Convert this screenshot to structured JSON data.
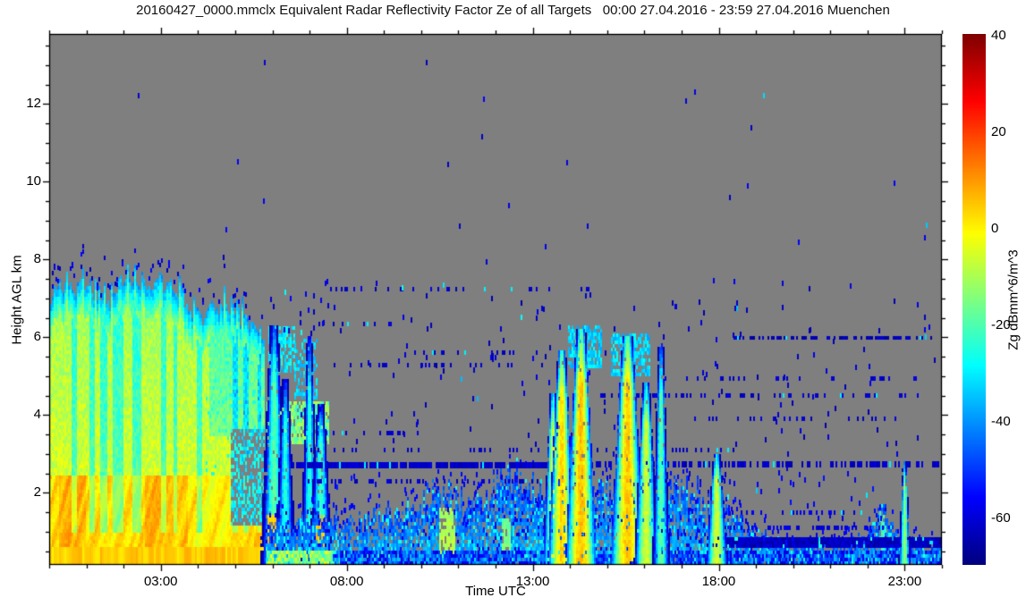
{
  "header": {
    "title": "20160427_0000.mmclx Equivalent Radar Reflectivity Factor Ze of all Targets   00:00 27.04.2016 - 23:59 27.04.2016 Muenchen"
  },
  "colors": {
    "page_bg": "#ffffff",
    "plot_bg": "#7f7f7f",
    "axis": "#000000",
    "text": "#111111"
  },
  "chart_data": {
    "type": "heatmap",
    "title": "20160427_0000.mmclx Equivalent Radar Reflectivity Factor Ze of all Targets   00:00 27.04.2016 - 23:59 27.04.2016 Muenchen",
    "xlabel": "Time UTC",
    "ylabel": "Height AGL km",
    "x_range_hours": [
      0,
      24
    ],
    "y_range_km": [
      0.15,
      13.8
    ],
    "x_major_ticks": [
      {
        "h": 3,
        "label": "03:00"
      },
      {
        "h": 8,
        "label": "08:00"
      },
      {
        "h": 13,
        "label": "13:00"
      },
      {
        "h": 18,
        "label": "18:00"
      },
      {
        "h": 23,
        "label": "23:00"
      }
    ],
    "x_minor_step_hours": 1,
    "y_major_ticks": [
      {
        "km": 2,
        "label": "2"
      },
      {
        "km": 4,
        "label": "4"
      },
      {
        "km": 6,
        "label": "6"
      },
      {
        "km": 8,
        "label": "8"
      },
      {
        "km": 10,
        "label": "10"
      },
      {
        "km": 12,
        "label": "12"
      }
    ],
    "y_minor_step_km": 0.5,
    "grid": false,
    "no_signal_color": "#7f7f7f",
    "colorbar": {
      "label": "Zg dBmm^6/m^3",
      "vmin": -70,
      "vmax": 40,
      "colormap": "jet",
      "ticks": [
        {
          "v": 40,
          "label": "40"
        },
        {
          "v": 20,
          "label": "20"
        },
        {
          "v": 0,
          "label": "0"
        },
        {
          "v": -20,
          "label": "-20"
        },
        {
          "v": -40,
          "label": "-40"
        },
        {
          "v": -60,
          "label": "-60"
        }
      ]
    },
    "features": [
      {
        "kind": "storm",
        "t0": 0.03,
        "t1": 5.78,
        "low_top_km": 2.4,
        "top_profile": [
          [
            0,
            7.1
          ],
          [
            0.8,
            7.3
          ],
          [
            1.6,
            7.0
          ],
          [
            2.2,
            7.45
          ],
          [
            3.1,
            7.3
          ],
          [
            3.55,
            7.1
          ],
          [
            3.8,
            6.6
          ],
          [
            4.3,
            6.5
          ],
          [
            4.75,
            6.8
          ],
          [
            5.05,
            6.3
          ],
          [
            5.45,
            6.35
          ],
          [
            5.78,
            6.1
          ]
        ]
      },
      {
        "kind": "blob",
        "t0": 5.85,
        "t1": 7.5,
        "h0": 3.25,
        "h1": 4.35,
        "v": -16,
        "jitter": 9,
        "density": 0.85
      },
      {
        "kind": "blob",
        "t0": 5.9,
        "t1": 6.6,
        "h0": 5.1,
        "h1": 6.25,
        "v": -30,
        "jitter": 6,
        "density": 0.6
      },
      {
        "kind": "blob",
        "t0": 6.6,
        "t1": 7.2,
        "h0": 4.4,
        "h1": 5.9,
        "v": -33,
        "jitter": 5,
        "density": 0.45
      },
      {
        "kind": "plume",
        "tc": 6.05,
        "hw": 0.16,
        "top": 6.3,
        "vcore": -20,
        "gs": true,
        "gv": 4
      },
      {
        "kind": "plume",
        "tc": 6.35,
        "hw": 0.12,
        "top": 4.9,
        "vcore": -26
      },
      {
        "kind": "plume",
        "tc": 7.0,
        "hw": 0.1,
        "top": 5.95,
        "vcore": -24
      },
      {
        "kind": "plume",
        "tc": 7.3,
        "hw": 0.14,
        "top": 4.2,
        "vcore": -22,
        "gs": true,
        "gv": 5
      },
      {
        "kind": "bl",
        "t0": 5.82,
        "t1": 24,
        "top_profile": [
          [
            5.82,
            1.3
          ],
          [
            6.5,
            1.0
          ],
          [
            7.2,
            1.35
          ],
          [
            8,
            1.1
          ],
          [
            9,
            1.35
          ],
          [
            10,
            1.7
          ],
          [
            10.7,
            2.1
          ],
          [
            11.3,
            1.7
          ],
          [
            12,
            2.0
          ],
          [
            12.5,
            2.45
          ],
          [
            13.1,
            2.2
          ],
          [
            13.6,
            1.9
          ],
          [
            14.1,
            1.6
          ],
          [
            14.6,
            2.0
          ],
          [
            15.1,
            1.8
          ],
          [
            15.8,
            2.0
          ],
          [
            16.6,
            2.1
          ],
          [
            17.3,
            1.9
          ],
          [
            18.1,
            1.6
          ],
          [
            18.6,
            1.1
          ],
          [
            19.3,
            0.8
          ],
          [
            20.2,
            0.6
          ],
          [
            21.2,
            0.55
          ],
          [
            22.0,
            0.8
          ],
          [
            22.45,
            1.6
          ],
          [
            22.8,
            0.9
          ],
          [
            23.2,
            0.65
          ],
          [
            24,
            0.6
          ]
        ],
        "cores": [
          {
            "tc": 10.72,
            "hw": 0.22,
            "htop": 1.6,
            "v": -6
          },
          {
            "tc": 12.3,
            "hw": 0.12,
            "htop": 1.3,
            "v": -12
          },
          {
            "tc": 22.4,
            "hw": 0.08,
            "htop": 1.4,
            "v": -18
          }
        ]
      },
      {
        "kind": "band",
        "t0": 5.85,
        "t1": 24,
        "h0": 0.15,
        "h1": 0.46,
        "density": 0.95,
        "v": -48,
        "jitter": 14,
        "cyan_prob": 0.06,
        "warm_until": 7.6
      },
      {
        "kind": "band",
        "t0": 17.85,
        "t1": 24,
        "h0": 0.58,
        "h1": 0.85,
        "density": 0.97,
        "v": -63,
        "jitter": 4,
        "cyan_prob": 0.03
      },
      {
        "kind": "dotrow",
        "h": 2.72,
        "t0": 6.55,
        "t1": 14.6,
        "density": 0.93,
        "thick": 0.17,
        "v": -62
      },
      {
        "kind": "dotrow",
        "h": 2.72,
        "t0": 14.6,
        "t1": 23.9,
        "density": 0.5,
        "thick": 0.15,
        "v": -62
      },
      {
        "kind": "dotrow",
        "h": 2.3,
        "t0": 6.8,
        "t1": 17.5,
        "density": 0.28,
        "thick": 0.12,
        "v": -62
      },
      {
        "kind": "dotrow",
        "h": 3.1,
        "t0": 6.6,
        "t1": 18.5,
        "density": 0.2,
        "thick": 0.12,
        "v": -62
      },
      {
        "kind": "dotrow",
        "h": 3.55,
        "t0": 6.7,
        "t1": 10.0,
        "density": 0.25,
        "thick": 0.12,
        "v": -62
      },
      {
        "kind": "dotrow",
        "h": 3.9,
        "t0": 17.3,
        "t1": 22.8,
        "density": 0.2,
        "thick": 0.12,
        "v": -62
      },
      {
        "kind": "dotrow",
        "h": 4.5,
        "t0": 13.7,
        "t1": 23.9,
        "density": 0.3,
        "thick": 0.12,
        "v": -62
      },
      {
        "kind": "dotrow",
        "h": 4.95,
        "t0": 16.3,
        "t1": 23.6,
        "density": 0.18,
        "thick": 0.12,
        "v": -62
      },
      {
        "kind": "dotrow",
        "h": 5.3,
        "t0": 7.4,
        "t1": 13.4,
        "density": 0.24,
        "thick": 0.12,
        "v": -62
      },
      {
        "kind": "dotrow",
        "h": 5.6,
        "t0": 9.8,
        "t1": 13.2,
        "density": 0.18,
        "thick": 0.12,
        "v": -62
      },
      {
        "kind": "dotrow",
        "h": 6.0,
        "t0": 18.4,
        "t1": 24,
        "density": 0.5,
        "thick": 0.1,
        "v": -64
      },
      {
        "kind": "dotrow",
        "h": 6.35,
        "t0": 7.2,
        "t1": 9.4,
        "density": 0.25,
        "thick": 0.12,
        "v": -62
      },
      {
        "kind": "dotrow",
        "h": 7.25,
        "t0": 7.3,
        "t1": 14.6,
        "density": 0.16,
        "thick": 0.12,
        "v": -62
      },
      {
        "kind": "dotrow",
        "h": 1.1,
        "t0": 18.3,
        "t1": 22.4,
        "density": 0.3,
        "thick": 0.12,
        "v": -60
      },
      {
        "kind": "dotrow",
        "h": 1.5,
        "t0": 18.3,
        "t1": 22.0,
        "density": 0.22,
        "thick": 0.12,
        "v": -60
      },
      {
        "kind": "scatter",
        "t0": 6.5,
        "t1": 23.9,
        "h0": 2.9,
        "h1": 7.4,
        "count": 160,
        "v": -62,
        "cyan_prob": 0.05
      },
      {
        "kind": "scatter",
        "t0": 13.0,
        "t1": 22.5,
        "h0": 0.5,
        "h1": 2.6,
        "count": 110,
        "v": -58,
        "cyan_prob": 0.07
      },
      {
        "kind": "scatter",
        "t0": 7.0,
        "t1": 13.0,
        "h0": 0.9,
        "h1": 2.5,
        "count": 60,
        "v": -56,
        "cyan_prob": 0.08
      },
      {
        "kind": "scatter",
        "t0": 1.5,
        "t1": 23.8,
        "h0": 7.6,
        "h1": 13.4,
        "count": 26,
        "v": -60,
        "cyan_prob": 0.12
      },
      {
        "kind": "scatter",
        "t0": 5.8,
        "t1": 7.6,
        "h0": 5.8,
        "h1": 7.4,
        "count": 18,
        "v": -60,
        "cyan_prob": 0.05
      },
      {
        "kind": "plume",
        "tc": 13.55,
        "hw": 0.12,
        "top": 4.5,
        "vcore": -4
      },
      {
        "kind": "plume",
        "tc": 13.78,
        "hw": 0.16,
        "top": 5.6,
        "vcore": 3
      },
      {
        "kind": "plume",
        "tc": 14.3,
        "hw": 0.18,
        "top": 6.15,
        "vcore": 6,
        "anvil": {
          "t0": 13.95,
          "t1": 14.85,
          "h0": 5.2,
          "h1": 6.25
        }
      },
      {
        "kind": "plume",
        "tc": 15.55,
        "hw": 0.2,
        "top": 6.0,
        "vcore": 5,
        "anvil": {
          "t0": 15.1,
          "t1": 16.15,
          "h0": 5.0,
          "h1": 6.1
        }
      },
      {
        "kind": "plume",
        "tc": 16.05,
        "hw": 0.14,
        "top": 4.8,
        "vcore": -6
      },
      {
        "kind": "plume",
        "tc": 16.45,
        "hw": 0.1,
        "top": 5.8,
        "vcore": -18
      },
      {
        "kind": "plume",
        "tc": 17.95,
        "hw": 0.13,
        "top": 2.95,
        "vcore": -6
      },
      {
        "kind": "plume",
        "tc": 23.0,
        "hw": 0.07,
        "top": 2.75,
        "vcore": -14
      }
    ]
  }
}
